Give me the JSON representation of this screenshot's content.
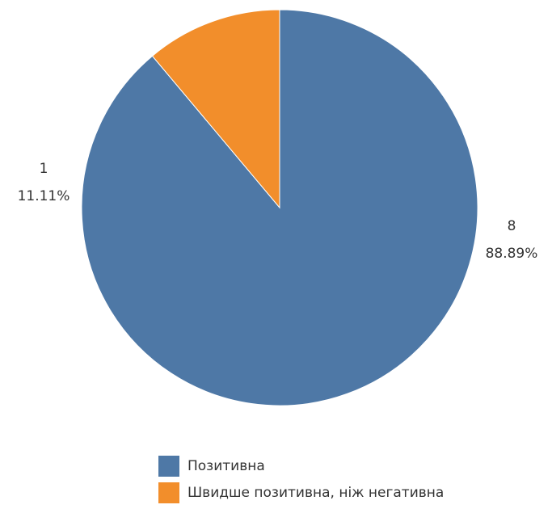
{
  "chart_data": {
    "type": "pie",
    "slices": [
      {
        "name": "Позитивна",
        "value": 8,
        "percent_label": "88.89%",
        "color": "#4e78a6"
      },
      {
        "name": "Швидше позитивна, ніж негативна",
        "value": 1,
        "percent_label": "11.11%",
        "color": "#f28e2b"
      }
    ],
    "legend": {
      "placement": "bottom"
    }
  }
}
